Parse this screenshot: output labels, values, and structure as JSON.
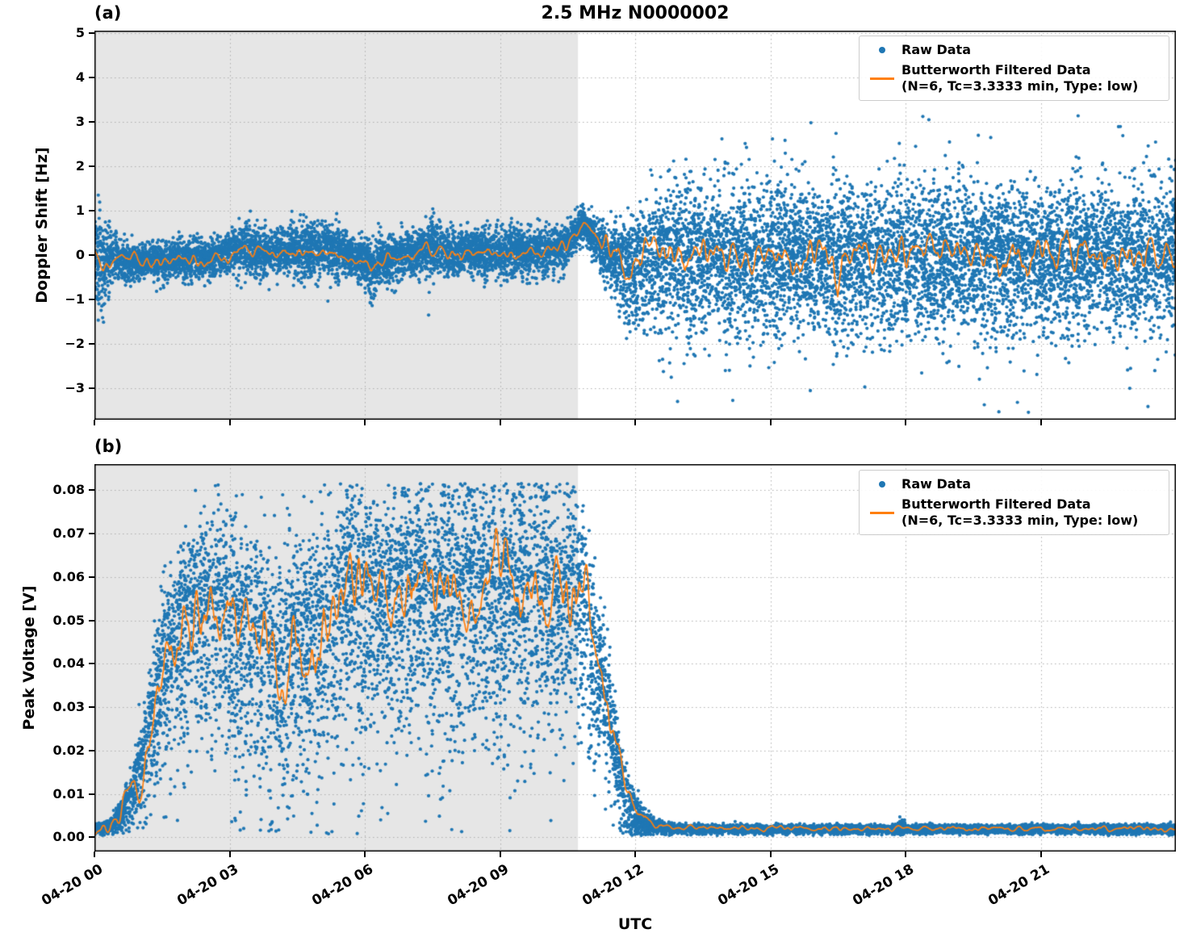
{
  "figure": {
    "title": "2.5 MHz N0000002",
    "xlabel": "UTC"
  },
  "legend": {
    "raw": "Raw Data",
    "filtered": "Butterworth Filtered Data",
    "filtered_params": "(N=6, Tc=3.3333 min, Type: low)"
  },
  "colors": {
    "raw": "#1f77b4",
    "filtered": "#ff7f0e",
    "shade": "#e6e6e6",
    "grid": "#b0b0b0",
    "axis": "#000000"
  },
  "chart_data": [
    {
      "type": "scatter",
      "panel": "(a)",
      "title": "2.5 MHz N0000002",
      "xlabel": "UTC",
      "ylabel": "Doppler Shift [Hz]",
      "x_range_hours": [
        0,
        24
      ],
      "x_ticks_hours": [
        0,
        3,
        6,
        9,
        12,
        15,
        18,
        21
      ],
      "x_tick_labels": [
        "04-20 00",
        "04-20 03",
        "04-20 06",
        "04-20 09",
        "04-20 12",
        "04-20 15",
        "04-20 18",
        "04-20 21"
      ],
      "ylim": [
        -3.7,
        5.05
      ],
      "yticks": [
        5,
        4,
        3,
        2,
        1,
        0,
        -1,
        -2,
        -3
      ],
      "ytick_labels": [
        "5",
        "4",
        "3",
        "2",
        "1",
        "0",
        "−1",
        "−2",
        "−3"
      ],
      "shaded_region_hours": [
        0,
        10.73
      ],
      "legend": [
        "Raw Data",
        "Butterworth Filtered Data (N=6, Tc=3.3333 min, Type: low)"
      ],
      "grid": true,
      "raw_envelope": {
        "x": [
          0,
          0.15,
          0.35,
          0.7,
          1.5,
          2.5,
          3.1,
          3.3,
          3.6,
          4.0,
          4.5,
          4.8,
          5.2,
          5.6,
          6.0,
          6.15,
          6.4,
          6.8,
          7.2,
          7.5,
          7.8,
          8.3,
          8.8,
          9.3,
          9.7,
          10.1,
          10.45,
          10.7,
          10.85,
          11.05,
          11.3,
          11.6,
          11.9,
          12.2,
          12.5,
          24
        ],
        "mean": [
          0.1,
          -0.25,
          -0.05,
          -0.12,
          -0.1,
          -0.08,
          0.1,
          0.2,
          0.05,
          0.08,
          0.12,
          0.1,
          0.12,
          0.05,
          -0.15,
          -0.3,
          -0.1,
          0.02,
          0.1,
          0.18,
          0.05,
          0.1,
          0.05,
          0.12,
          0.08,
          0.12,
          0.15,
          0.55,
          0.72,
          0.45,
          0.15,
          -0.1,
          -0.35,
          -0.15,
          0.0,
          0.0
        ],
        "std_x": [
          0,
          0.08,
          0.18,
          0.35,
          0.6,
          1.0,
          2.0,
          3.0,
          3.4,
          4.0,
          4.6,
          5.2,
          5.8,
          6.1,
          6.5,
          7.0,
          7.5,
          8.0,
          9.0,
          10.0,
          10.5,
          10.9,
          11.2,
          11.5,
          11.8,
          12.1,
          12.4,
          13.0,
          24
        ],
        "std": [
          0.45,
          0.65,
          0.5,
          0.3,
          0.22,
          0.18,
          0.2,
          0.22,
          0.3,
          0.25,
          0.28,
          0.3,
          0.22,
          0.32,
          0.28,
          0.24,
          0.3,
          0.25,
          0.26,
          0.24,
          0.2,
          0.18,
          0.22,
          0.38,
          0.55,
          0.68,
          0.75,
          0.78,
          0.78
        ]
      },
      "filtered_line": {
        "x": [
          0,
          0.2,
          0.5,
          1.0,
          1.5,
          2.0,
          2.5,
          3.0,
          3.2,
          3.5,
          4.0,
          4.5,
          5.0,
          5.5,
          6.0,
          6.15,
          6.5,
          7.0,
          7.3,
          7.6,
          8.0,
          8.5,
          9.0,
          9.5,
          10.0,
          10.45,
          10.7,
          10.85,
          11.0,
          11.2,
          11.5,
          11.9,
          12.2,
          12.5,
          16.4,
          16.5,
          16.6,
          24
        ],
        "y": [
          0.0,
          -0.3,
          -0.08,
          -0.12,
          -0.1,
          -0.08,
          -0.12,
          -0.02,
          0.15,
          0.05,
          0.02,
          0.1,
          0.08,
          0.0,
          -0.12,
          -0.28,
          -0.1,
          0.0,
          0.15,
          0.05,
          0.02,
          0.08,
          0.02,
          0.08,
          0.05,
          0.15,
          0.55,
          0.75,
          0.6,
          0.3,
          0.08,
          -0.25,
          -0.1,
          0.0,
          0.0,
          -1.4,
          0.0,
          0.0
        ]
      },
      "render": {
        "seed": 42,
        "n_points": 14000,
        "marker_px": 2.1,
        "neg_mult": 1.12,
        "outlier_frac": 0.012,
        "outlier_mult": 2.3,
        "outlier_after_hour": 12.2,
        "clip": [
          -3.55,
          3.15
        ],
        "line_samples": 1440,
        "line_noise_amp": {
          "x": [
            0,
            11.0,
            12.0,
            24
          ],
          "amp": [
            0.07,
            0.07,
            0.2,
            0.2
          ]
        }
      }
    },
    {
      "type": "scatter",
      "panel": "(b)",
      "title": "2.5 MHz N0000002",
      "xlabel": "UTC",
      "ylabel": "Peak Voltage [V]",
      "x_range_hours": [
        0,
        24
      ],
      "x_ticks_hours": [
        0,
        3,
        6,
        9,
        12,
        15,
        18,
        21
      ],
      "x_tick_labels": [
        "04-20 00",
        "04-20 03",
        "04-20 06",
        "04-20 09",
        "04-20 12",
        "04-20 15",
        "04-20 18",
        "04-20 21"
      ],
      "ylim": [
        -0.0033,
        0.086
      ],
      "yticks": [
        0.0,
        0.01,
        0.02,
        0.03,
        0.04,
        0.05,
        0.06,
        0.07,
        0.08
      ],
      "ytick_labels": [
        "0.00",
        "0.01",
        "0.02",
        "0.03",
        "0.04",
        "0.05",
        "0.06",
        "0.07",
        "0.08"
      ],
      "shaded_region_hours": [
        0,
        10.73
      ],
      "legend": [
        "Raw Data",
        "Butterworth Filtered Data (N=6, Tc=3.3333 min, Type: low)"
      ],
      "grid": true,
      "raw_envelope": {
        "x": [
          0,
          0.3,
          0.5,
          0.7,
          0.9,
          1.1,
          1.3,
          1.5,
          1.8,
          2.1,
          2.4,
          2.7,
          3.0,
          3.3,
          3.6,
          3.9,
          4.2,
          4.5,
          4.8,
          5.1,
          5.4,
          5.7,
          6.0,
          6.3,
          6.6,
          6.9,
          7.2,
          7.5,
          7.8,
          8.1,
          8.4,
          8.7,
          9.0,
          9.3,
          9.6,
          9.9,
          10.2,
          10.5,
          10.75,
          11.0,
          11.2,
          11.4,
          11.6,
          11.8,
          12.0,
          12.3,
          12.7,
          13.2,
          17.8,
          17.9,
          18.0,
          24
        ],
        "mean": [
          0.002,
          0.0025,
          0.004,
          0.008,
          0.013,
          0.02,
          0.03,
          0.04,
          0.047,
          0.052,
          0.05,
          0.054,
          0.051,
          0.048,
          0.045,
          0.042,
          0.04,
          0.044,
          0.047,
          0.05,
          0.054,
          0.058,
          0.055,
          0.052,
          0.056,
          0.06,
          0.057,
          0.055,
          0.058,
          0.056,
          0.06,
          0.057,
          0.055,
          0.059,
          0.056,
          0.06,
          0.055,
          0.058,
          0.055,
          0.048,
          0.04,
          0.03,
          0.018,
          0.009,
          0.005,
          0.003,
          0.0022,
          0.002,
          0.002,
          0.0026,
          0.002,
          0.002
        ],
        "std_x": [
          0,
          0.4,
          0.7,
          1.0,
          1.4,
          1.8,
          2.3,
          3.0,
          4.0,
          5.0,
          6.0,
          7.0,
          8.0,
          9.0,
          10.0,
          10.6,
          11.0,
          11.3,
          11.6,
          11.9,
          12.2,
          12.6,
          13.0,
          17.8,
          17.9,
          18.0,
          24
        ],
        "std": [
          0.0005,
          0.0008,
          0.002,
          0.004,
          0.007,
          0.009,
          0.011,
          0.012,
          0.012,
          0.012,
          0.0125,
          0.012,
          0.0125,
          0.012,
          0.0125,
          0.011,
          0.009,
          0.007,
          0.005,
          0.003,
          0.0012,
          0.0007,
          0.0004,
          0.0004,
          0.0012,
          0.0004,
          0.0004
        ]
      },
      "filtered_line": {
        "x": [
          0,
          0.4,
          0.7,
          0.9,
          1.0,
          1.1,
          1.3,
          1.5,
          1.7,
          2.0,
          2.2,
          2.5,
          2.8,
          3.1,
          3.4,
          3.7,
          4.0,
          4.3,
          4.6,
          4.9,
          5.2,
          5.5,
          5.8,
          6.1,
          6.4,
          6.7,
          7.0,
          7.3,
          7.6,
          7.9,
          8.2,
          8.5,
          8.8,
          9.1,
          9.4,
          9.7,
          10.0,
          10.3,
          10.6,
          10.8,
          11.0,
          11.2,
          11.4,
          11.6,
          11.8,
          12.0,
          12.2,
          12.5,
          13.0,
          24
        ],
        "y": [
          0.002,
          0.003,
          0.008,
          0.012,
          0.01,
          0.016,
          0.025,
          0.038,
          0.045,
          0.05,
          0.047,
          0.053,
          0.05,
          0.054,
          0.048,
          0.045,
          0.043,
          0.04,
          0.046,
          0.044,
          0.05,
          0.056,
          0.061,
          0.055,
          0.059,
          0.054,
          0.058,
          0.062,
          0.056,
          0.06,
          0.055,
          0.059,
          0.057,
          0.061,
          0.056,
          0.06,
          0.054,
          0.058,
          0.056,
          0.052,
          0.047,
          0.04,
          0.03,
          0.02,
          0.012,
          0.007,
          0.004,
          0.0025,
          0.002,
          0.002
        ]
      },
      "render": {
        "seed": 1234,
        "n_points": 13000,
        "marker_px": 2.1,
        "neg_mult": 1.5,
        "outlier_frac": 0.0,
        "outlier_mult": 1.0,
        "outlier_after_hour": 24,
        "clip": [
          0.0004,
          0.0815
        ],
        "line_samples": 1440,
        "line_noise_amp": {
          "x": [
            0,
            0.8,
            1.5,
            2.5,
            10.5,
            11.2,
            11.8,
            12.4,
            24
          ],
          "amp": [
            0.0006,
            0.0015,
            0.003,
            0.0045,
            0.0045,
            0.003,
            0.0012,
            0.0003,
            0.0003
          ]
        }
      }
    }
  ]
}
